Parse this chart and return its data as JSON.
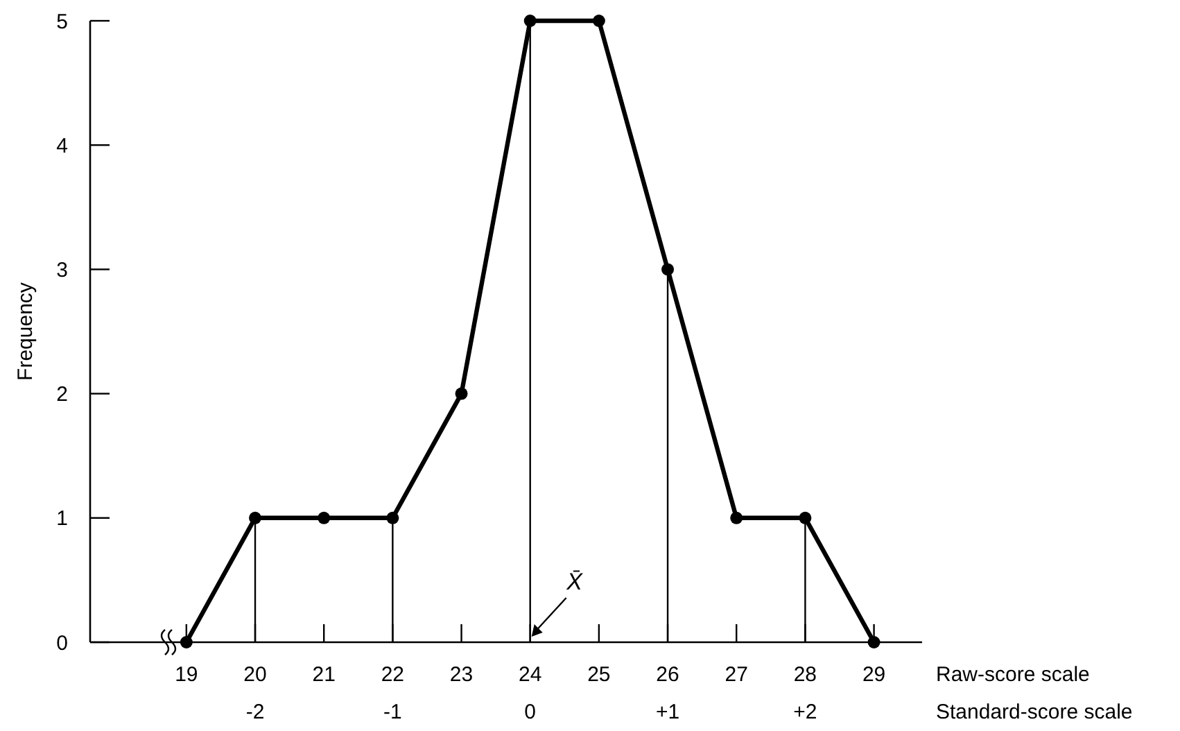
{
  "chart_data": {
    "type": "line",
    "xlabel": "Raw-score scale",
    "ylabel": "Frequency",
    "x2label": "Standard-score scale",
    "x": [
      19,
      20,
      21,
      22,
      23,
      24,
      25,
      26,
      27,
      28,
      29
    ],
    "series": [
      {
        "color": "#000000",
        "values": [
          0,
          1,
          1,
          1,
          2,
          5,
          5,
          3,
          1,
          1,
          0
        ]
      }
    ],
    "xlim": [
      17.6,
      29.7
    ],
    "xticks": [
      19,
      20,
      21,
      22,
      23,
      24,
      25,
      26,
      27,
      28,
      29
    ],
    "x2lim": [
      -3.2,
      2.85
    ],
    "x2ticks": [
      -2,
      -1,
      0,
      {
        "value": 1,
        "label": "+1"
      },
      {
        "value": 2,
        "label": "+2"
      }
    ],
    "ylim": [
      0,
      5
    ],
    "yticks": [
      0,
      1,
      2,
      3,
      4,
      5
    ],
    "ref_lines": [
      {
        "axis": "x",
        "value": 20
      },
      {
        "axis": "x",
        "value": 22
      },
      {
        "axis": "x",
        "value": 24
      },
      {
        "axis": "x",
        "value": 26
      },
      {
        "axis": "x",
        "value": 28
      }
    ],
    "annotations": [
      {
        "text": "X̄",
        "x": 24,
        "y": 0
      }
    ],
    "marker": "circle",
    "line_style": "solid",
    "grid": false
  }
}
